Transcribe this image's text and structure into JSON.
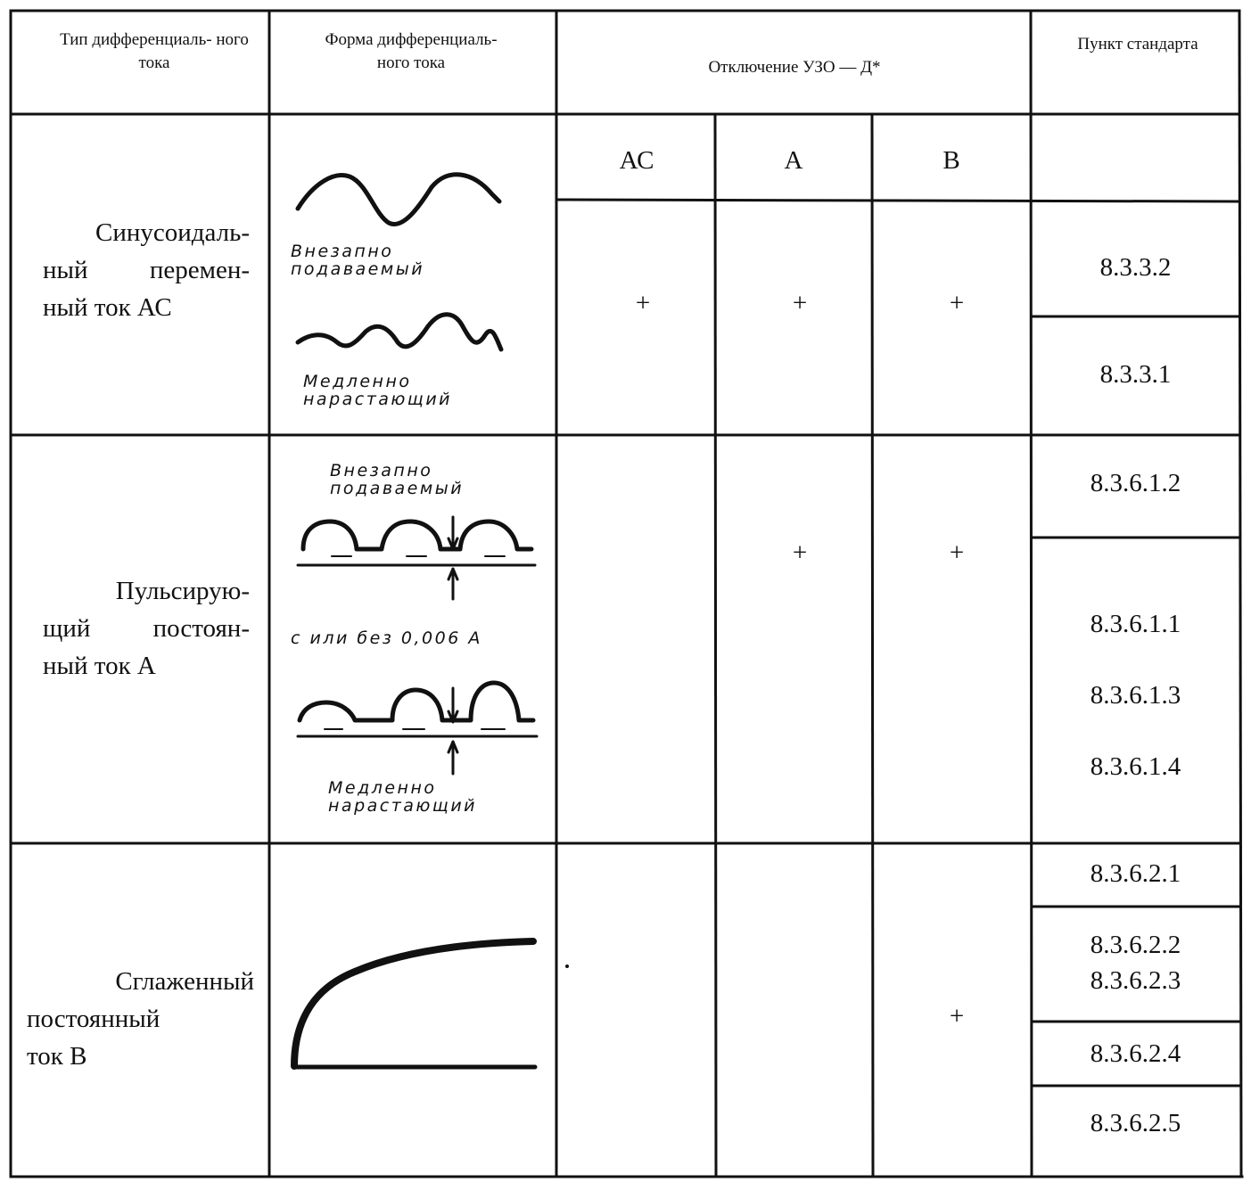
{
  "header": {
    "type_label": "Тип дифференциаль- ного тока",
    "form_label": "Форма дифференциаль- ного тока",
    "tripping_label": "Отключение УЗО — Д*",
    "clause_label": "Пункт стандарта"
  },
  "device_types": [
    "АС",
    "А",
    "В"
  ],
  "rows": [
    {
      "type_lines": [
        "Синусоидаль-",
        "ный перемен-",
        "ный ток АС"
      ],
      "notes": [
        "Внезапно подаваемый",
        "Медленно нарастающий"
      ],
      "marks": [
        "+",
        "+",
        "+"
      ],
      "clauses": [
        "8.3.3.2",
        "8.3.3.1"
      ]
    },
    {
      "type_lines": [
        "Пульсирую-",
        "щий постоян-",
        "ный ток А"
      ],
      "notes": [
        "Внезапно подаваемый",
        "с или без 0,006 А",
        "Медленно нарастающий"
      ],
      "marks": [
        "+",
        "+"
      ],
      "clauses": [
        "8.3.6.1.2",
        "8.3.6.1.1",
        "8.3.6.1.3",
        "8.3.6.1.4"
      ]
    },
    {
      "type_lines": [
        "Сглаженный",
        "постоянный",
        "ток В"
      ],
      "marks": [
        "+"
      ],
      "clauses": [
        "8.3.6.2.1",
        "8.3.6.2.2",
        "8.3.6.2.3",
        "8.3.6.2.4",
        "8.3.6.2.5"
      ]
    }
  ]
}
